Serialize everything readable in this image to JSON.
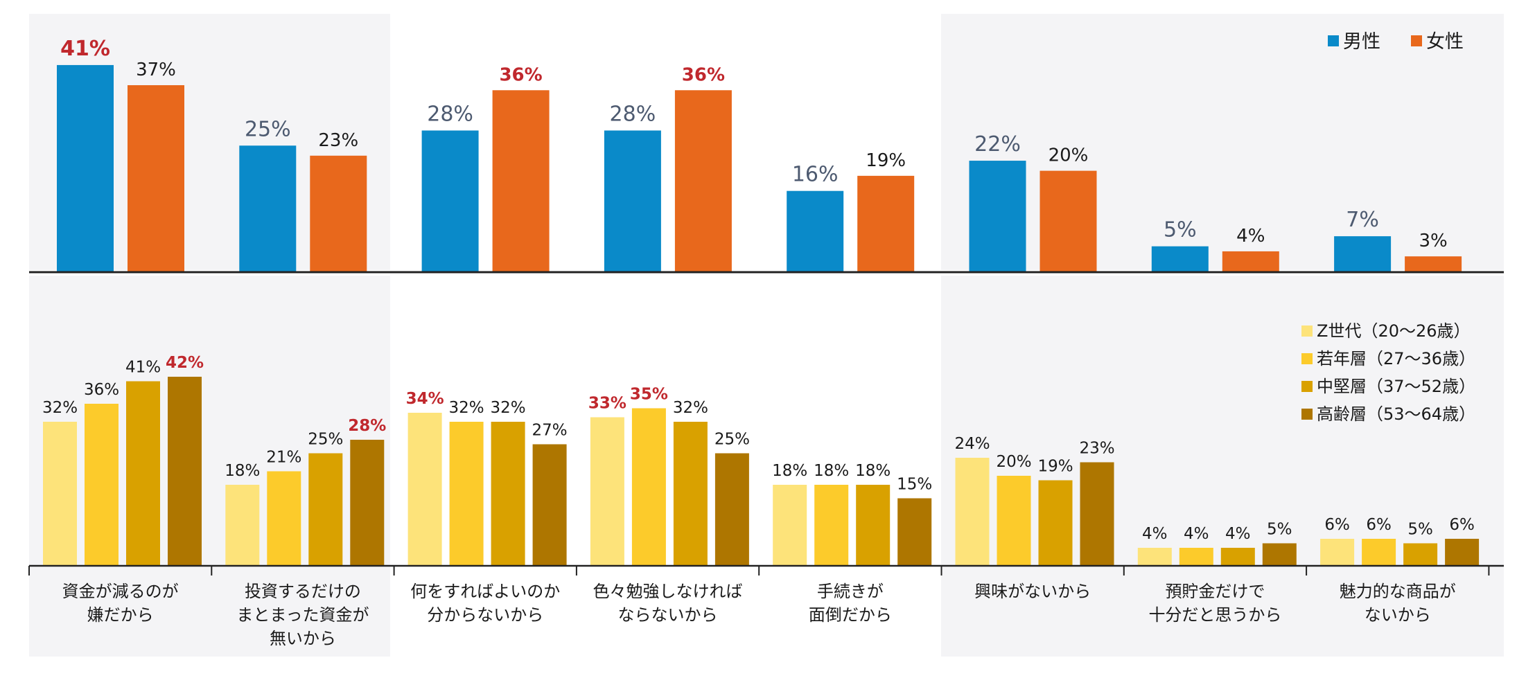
{
  "categories": [
    [
      "資金が減るのが",
      "嫌だから"
    ],
    [
      "投資するだけの",
      "まとまった資金が",
      "無いから"
    ],
    [
      "何をすればよいのか",
      "分からないから"
    ],
    [
      "色々勉強しなければ",
      "ならないから"
    ],
    [
      "手続きが",
      "面倒だから"
    ],
    [
      "興味がないから"
    ],
    [
      "預貯金だけで",
      "十分だと思うから"
    ],
    [
      "魅力的な商品が",
      "ないから"
    ]
  ],
  "colors": {
    "male": "#0a8ac9",
    "female": "#e8681c",
    "z_gen": "#fde37a",
    "young": "#fccb2b",
    "middle": "#d9a100",
    "senior": "#ae7600",
    "highlight_text": "#c0282d",
    "gender_label_male": "#4d5a70",
    "panel_bg": "#f4f4f6"
  },
  "chart_data": [
    {
      "type": "bar",
      "title": "",
      "series": [
        {
          "name": "男性",
          "values": [
            41,
            25,
            28,
            28,
            16,
            22,
            5,
            7
          ]
        },
        {
          "name": "女性",
          "values": [
            37,
            23,
            36,
            36,
            19,
            20,
            4,
            3
          ]
        }
      ],
      "value_labels": [
        [
          "41%",
          "25%",
          "28%",
          "28%",
          "16%",
          "22%",
          "5%",
          "7%"
        ],
        [
          "37%",
          "23%",
          "36%",
          "36%",
          "19%",
          "20%",
          "4%",
          "3%"
        ]
      ],
      "highlighted": [
        [
          true,
          false,
          false,
          false,
          false,
          false,
          false,
          false
        ],
        [
          false,
          false,
          true,
          true,
          false,
          false,
          false,
          false
        ]
      ],
      "legend_position": "top-right",
      "grid": false
    },
    {
      "type": "bar",
      "title": "",
      "series": [
        {
          "name": "Z世代（20～26歳）",
          "values": [
            32,
            18,
            34,
            33,
            18,
            24,
            4,
            6
          ]
        },
        {
          "name": "若年層（27～36歳）",
          "values": [
            36,
            21,
            32,
            35,
            18,
            20,
            4,
            6
          ]
        },
        {
          "name": "中堅層（37～52歳）",
          "values": [
            41,
            25,
            32,
            32,
            18,
            19,
            4,
            5
          ]
        },
        {
          "name": "高齢層（53～64歳）",
          "values": [
            42,
            28,
            27,
            25,
            15,
            23,
            5,
            6
          ]
        }
      ],
      "value_labels": [
        [
          "32%",
          "18%",
          "34%",
          "33%",
          "18%",
          "24%",
          "4%",
          "6%"
        ],
        [
          "36%",
          "21%",
          "32%",
          "35%",
          "18%",
          "20%",
          "4%",
          "6%"
        ],
        [
          "41%",
          "25%",
          "32%",
          "32%",
          "18%",
          "19%",
          "4%",
          "5%"
        ],
        [
          "42%",
          "28%",
          "27%",
          "25%",
          "15%",
          "23%",
          "5%",
          "6%"
        ]
      ],
      "highlighted": [
        [
          false,
          false,
          true,
          true,
          false,
          false,
          false,
          false
        ],
        [
          false,
          false,
          false,
          true,
          false,
          false,
          false,
          false
        ],
        [
          false,
          false,
          false,
          false,
          false,
          false,
          false,
          false
        ],
        [
          true,
          true,
          false,
          false,
          false,
          false,
          false,
          false
        ]
      ],
      "legend_position": "top-right",
      "grid": false
    }
  ]
}
